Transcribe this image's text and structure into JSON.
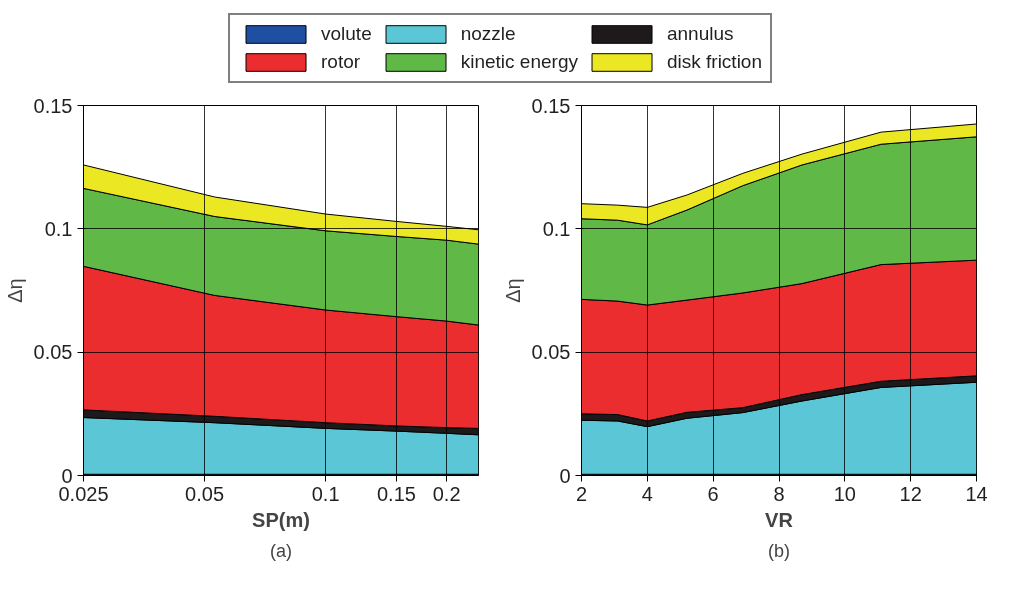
{
  "chart_data": [
    {
      "type": "area",
      "stacked": true,
      "xlabel": "SP(m)",
      "ylabel": "Δη",
      "annotations": [
        "(a)"
      ],
      "log": "x",
      "grid": true,
      "legend": "top",
      "x": [
        0.025,
        0.053,
        0.1,
        0.15,
        0.2,
        0.24
      ],
      "xlim": [
        0.025,
        0.24
      ],
      "xticks": [
        0.025,
        0.05,
        0.1,
        0.15,
        0.2
      ],
      "ylim": [
        0,
        0.15
      ],
      "yticks": [
        0,
        0.05,
        0.1,
        0.15
      ],
      "series": [
        {
          "name": "volute",
          "color": "#1f4fa0",
          "values": [
            0.0005,
            0.0005,
            0.0005,
            0.0005,
            0.0005,
            0.0005
          ]
        },
        {
          "name": "nozzle",
          "color": "#5bc7d6",
          "values": [
            0.023,
            0.0209,
            0.0186,
            0.0175,
            0.0166,
            0.016
          ]
        },
        {
          "name": "annulus",
          "color": "#1e1a1b",
          "values": [
            0.0031,
            0.0026,
            0.0023,
            0.0021,
            0.0023,
            0.0026
          ]
        },
        {
          "name": "rotor",
          "color": "#ec2d2f",
          "values": [
            0.0582,
            0.049,
            0.0457,
            0.0443,
            0.0432,
            0.0419
          ]
        },
        {
          "name": "kinetic energy",
          "color": "#60b946",
          "values": [
            0.0316,
            0.032,
            0.0321,
            0.0325,
            0.0328,
            0.0328
          ]
        },
        {
          "name": "disk friction",
          "color": "#ebe723",
          "values": [
            0.0095,
            0.0079,
            0.0068,
            0.0061,
            0.0056,
            0.0058
          ]
        }
      ]
    },
    {
      "type": "area",
      "stacked": true,
      "xlabel": "VR",
      "ylabel": "Δη",
      "annotations": [
        "(b)"
      ],
      "grid": true,
      "x": [
        2,
        3.1,
        4,
        5.2,
        6.9,
        8.7,
        11.1,
        14
      ],
      "xlim": [
        2,
        14
      ],
      "xticks": [
        2,
        4,
        6,
        8,
        10,
        12,
        14
      ],
      "ylim": [
        0,
        0.15
      ],
      "yticks": [
        0,
        0.05,
        0.1,
        0.15
      ],
      "series": [
        {
          "color": "#1f4fa0",
          "values": [
            0.0005,
            0.0005,
            0.0005,
            0.0005,
            0.0005,
            0.0005,
            0.0005,
            0.0005
          ]
        },
        {
          "color": "#5bc7d6",
          "values": [
            0.0219,
            0.0216,
            0.0193,
            0.0227,
            0.025,
            0.0297,
            0.0352,
            0.0373
          ]
        },
        {
          "color": "#1e1a1b",
          "values": [
            0.0026,
            0.0026,
            0.0023,
            0.0024,
            0.002,
            0.0026,
            0.0025,
            0.0026
          ]
        },
        {
          "color": "#ec2d2f",
          "values": [
            0.0464,
            0.046,
            0.047,
            0.0455,
            0.0465,
            0.045,
            0.0473,
            0.0469
          ]
        },
        {
          "color": "#60b946",
          "values": [
            0.0327,
            0.0328,
            0.0325,
            0.0365,
            0.0435,
            0.0481,
            0.0488,
            0.05
          ]
        },
        {
          "color": "#ebe723",
          "values": [
            0.0061,
            0.0061,
            0.0071,
            0.0061,
            0.005,
            0.0044,
            0.0049,
            0.0052
          ]
        }
      ]
    }
  ]
}
